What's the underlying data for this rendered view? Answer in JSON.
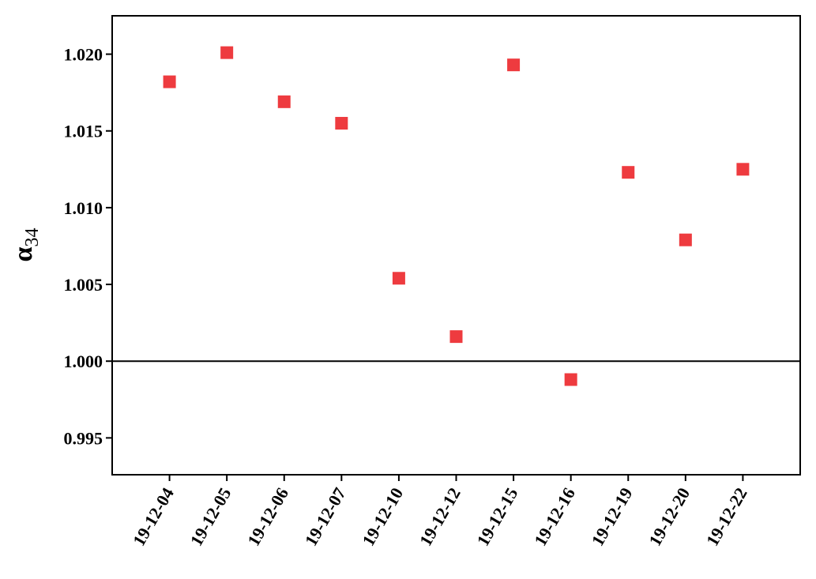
{
  "chart_data": {
    "type": "scatter",
    "ylabel": "α",
    "ylabel_subscript": "34",
    "categories": [
      "19-12-04",
      "19-12-05",
      "19-12-06",
      "19-12-07",
      "19-12-10",
      "19-12-12",
      "19-12-15",
      "19-12-16",
      "19-12-19",
      "19-12-20",
      "19-12-22"
    ],
    "series": [
      {
        "color": "#ee3b3f",
        "values": [
          1.0182,
          1.0201,
          1.0169,
          1.0155,
          1.0054,
          1.0016,
          1.0193,
          0.9988,
          1.0123,
          1.0079,
          1.0125
        ]
      }
    ],
    "ylim": [
      0.9926,
      1.0225
    ],
    "yticks": [
      {
        "value": 0.995,
        "label": "0.995"
      },
      {
        "value": 1.0,
        "label": "1.000"
      },
      {
        "value": 1.005,
        "label": "1.005"
      },
      {
        "value": 1.01,
        "label": "1.010"
      },
      {
        "value": 1.015,
        "label": "1.015"
      },
      {
        "value": 1.02,
        "label": "1.020"
      }
    ],
    "reference_line": 1
  }
}
